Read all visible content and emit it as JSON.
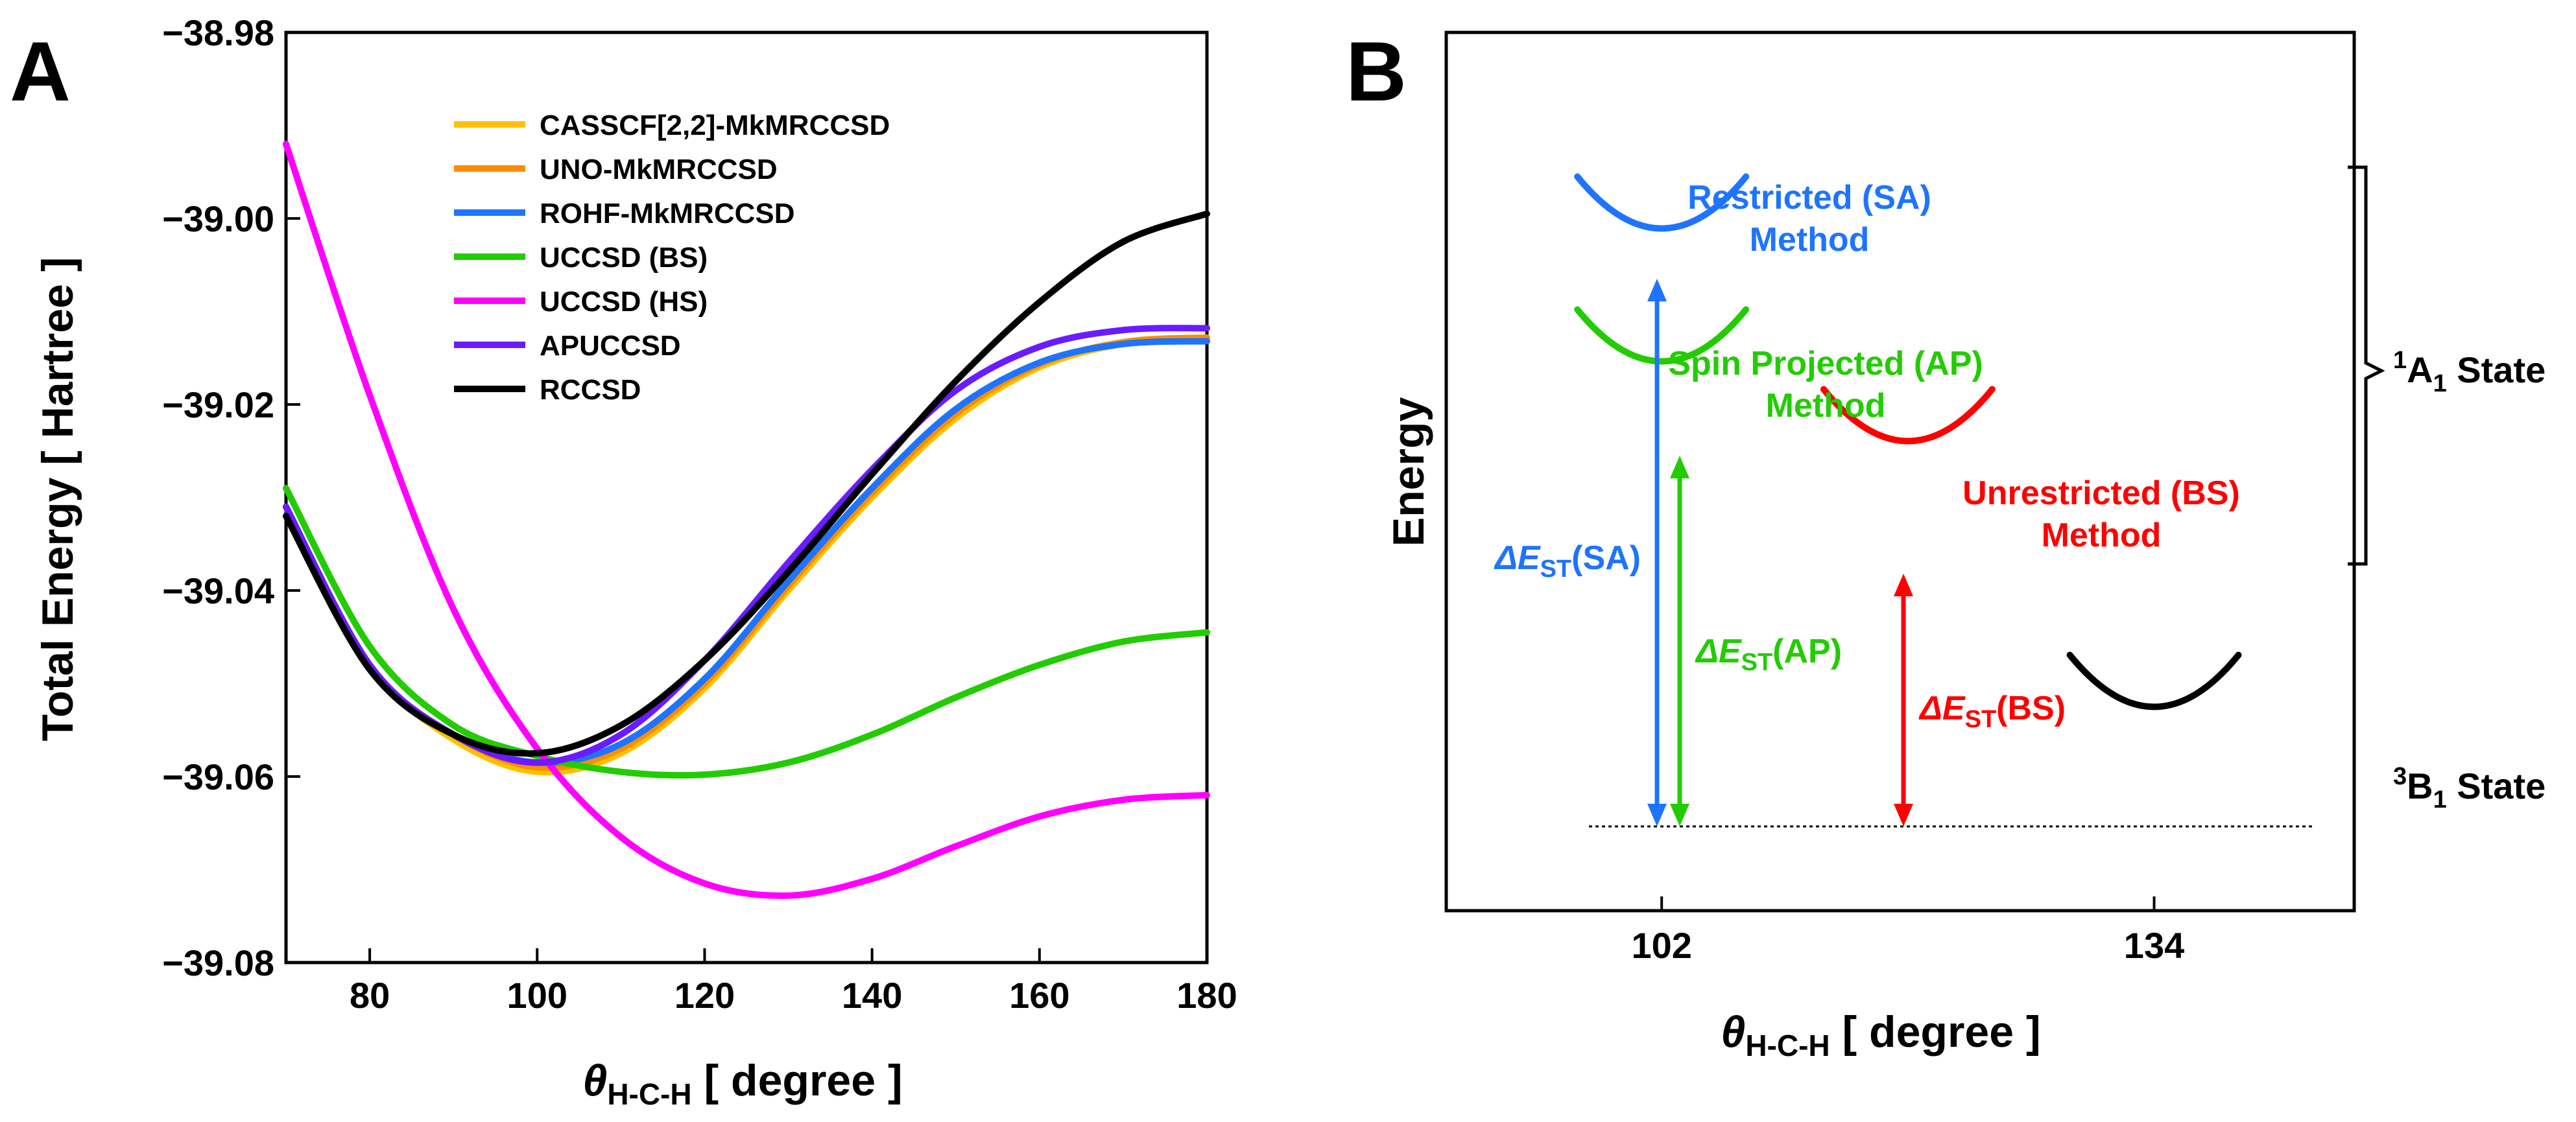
{
  "panels": {
    "a": "A",
    "b": "B"
  },
  "chart_data": [
    {
      "type": "line",
      "xlabel": {
        "symbol": "θ",
        "sub": "H-C-H",
        "text": " [ degree ]"
      },
      "ylabel": "Total Energy [ Hartree ]",
      "xlim": [
        70,
        180
      ],
      "ylim": [
        -39.08,
        -38.98
      ],
      "xticks": [
        80,
        100,
        120,
        140,
        160,
        180
      ],
      "yticks": [
        "−38.98",
        "−39.00",
        "−39.02",
        "−39.04",
        "−39.06",
        "−39.08"
      ],
      "ytick_values": [
        -38.98,
        -39.0,
        -39.02,
        -39.04,
        -39.06,
        -39.08
      ],
      "legend_position": "top-right",
      "series": [
        {
          "name": "CASSCF[2,2]-MkMRCCSD",
          "color": "#FFC000",
          "x": [
            70,
            80,
            90,
            100,
            110,
            120,
            130,
            140,
            150,
            160,
            170,
            180
          ],
          "y": [
            -39.031,
            -39.048,
            -39.056,
            -39.0595,
            -39.0575,
            -39.0505,
            -39.04,
            -39.03,
            -39.0215,
            -39.016,
            -39.0135,
            -39.013
          ]
        },
        {
          "name": "UNO-MkMRCCSD",
          "color": "#FF8C00",
          "x": [
            70,
            80,
            90,
            100,
            110,
            120,
            130,
            140,
            150,
            160,
            170,
            180
          ],
          "y": [
            -39.031,
            -39.048,
            -39.0555,
            -39.059,
            -39.057,
            -39.05,
            -39.0395,
            -39.0295,
            -39.021,
            -39.0157,
            -39.0133,
            -39.0128
          ]
        },
        {
          "name": "ROHF-MkMRCCSD",
          "color": "#1E74FF",
          "x": [
            70,
            80,
            90,
            100,
            110,
            120,
            130,
            140,
            150,
            160,
            170,
            180
          ],
          "y": [
            -39.031,
            -39.048,
            -39.0555,
            -39.0585,
            -39.0565,
            -39.0495,
            -39.039,
            -39.029,
            -39.0205,
            -39.0155,
            -39.0135,
            -39.0132
          ]
        },
        {
          "name": "UCCSD (BS)",
          "color": "#22CC00",
          "x": [
            70,
            80,
            90,
            100,
            110,
            120,
            130,
            140,
            150,
            160,
            170,
            180
          ],
          "y": [
            -39.029,
            -39.046,
            -39.0545,
            -39.0578,
            -39.0595,
            -39.0598,
            -39.0585,
            -39.0555,
            -39.0515,
            -39.048,
            -39.0455,
            -39.0445
          ]
        },
        {
          "name": "UCCSD (HS)",
          "color": "#FF00FF",
          "x": [
            70,
            80,
            90,
            100,
            110,
            120,
            130,
            140,
            150,
            160,
            170,
            180
          ],
          "y": [
            -38.992,
            -39.019,
            -39.042,
            -39.057,
            -39.0665,
            -39.0715,
            -39.0728,
            -39.071,
            -39.0675,
            -39.0643,
            -39.0625,
            -39.062
          ]
        },
        {
          "name": "APUCCSD",
          "color": "#6A1BFF",
          "x": [
            70,
            80,
            90,
            100,
            110,
            120,
            130,
            140,
            150,
            160,
            170,
            180
          ],
          "y": [
            -39.031,
            -39.048,
            -39.0555,
            -39.0585,
            -39.0555,
            -39.0475,
            -39.037,
            -39.027,
            -39.0185,
            -39.0138,
            -39.012,
            -39.0118
          ]
        },
        {
          "name": "RCCSD",
          "color": "#000000",
          "x": [
            70,
            80,
            90,
            100,
            110,
            120,
            130,
            140,
            150,
            160,
            170,
            180
          ],
          "y": [
            -39.032,
            -39.0485,
            -39.0555,
            -39.0575,
            -39.0545,
            -39.0475,
            -39.038,
            -39.0275,
            -39.0175,
            -39.009,
            -39.0025,
            -38.9995
          ]
        }
      ]
    },
    {
      "type": "diagram",
      "xlabel": {
        "symbol": "θ",
        "sub": "H-C-H",
        "text": " [ degree ]"
      },
      "ylabel": "Energy",
      "xticks": [
        102,
        134
      ],
      "xlim": [
        88,
        147
      ],
      "wells": [
        {
          "label_lines": [
            "Restricted (SA)",
            "Method"
          ],
          "color": "#1E74FF",
          "x": 102,
          "min_level": 0.1
        },
        {
          "label_lines": [
            "Spin Projected (AP)",
            "Method"
          ],
          "color": "#22CC00",
          "x": 102,
          "min_level": 0.3
        },
        {
          "label_lines": [
            "Unrestricted (BS)",
            "Method"
          ],
          "color": "#FF0000",
          "x": 118,
          "min_level": 0.42
        },
        {
          "label_lines": [],
          "color": "#000000",
          "x": 134,
          "min_level": 0.82
        }
      ],
      "gaps": [
        {
          "delta": "ΔE",
          "sub": "ST",
          "tag": "(SA)",
          "color": "#1E74FF"
        },
        {
          "delta": "ΔE",
          "sub": "ST",
          "tag": "(AP)",
          "color": "#22CC00"
        },
        {
          "delta": "ΔE",
          "sub": "ST",
          "tag": "(BS)",
          "color": "#FF0000"
        }
      ],
      "states": [
        {
          "sup": "1",
          "main": "A",
          "sub": "1",
          "tail": " State"
        },
        {
          "sup": "3",
          "main": "B",
          "sub": "1",
          "tail": " State"
        }
      ]
    }
  ]
}
